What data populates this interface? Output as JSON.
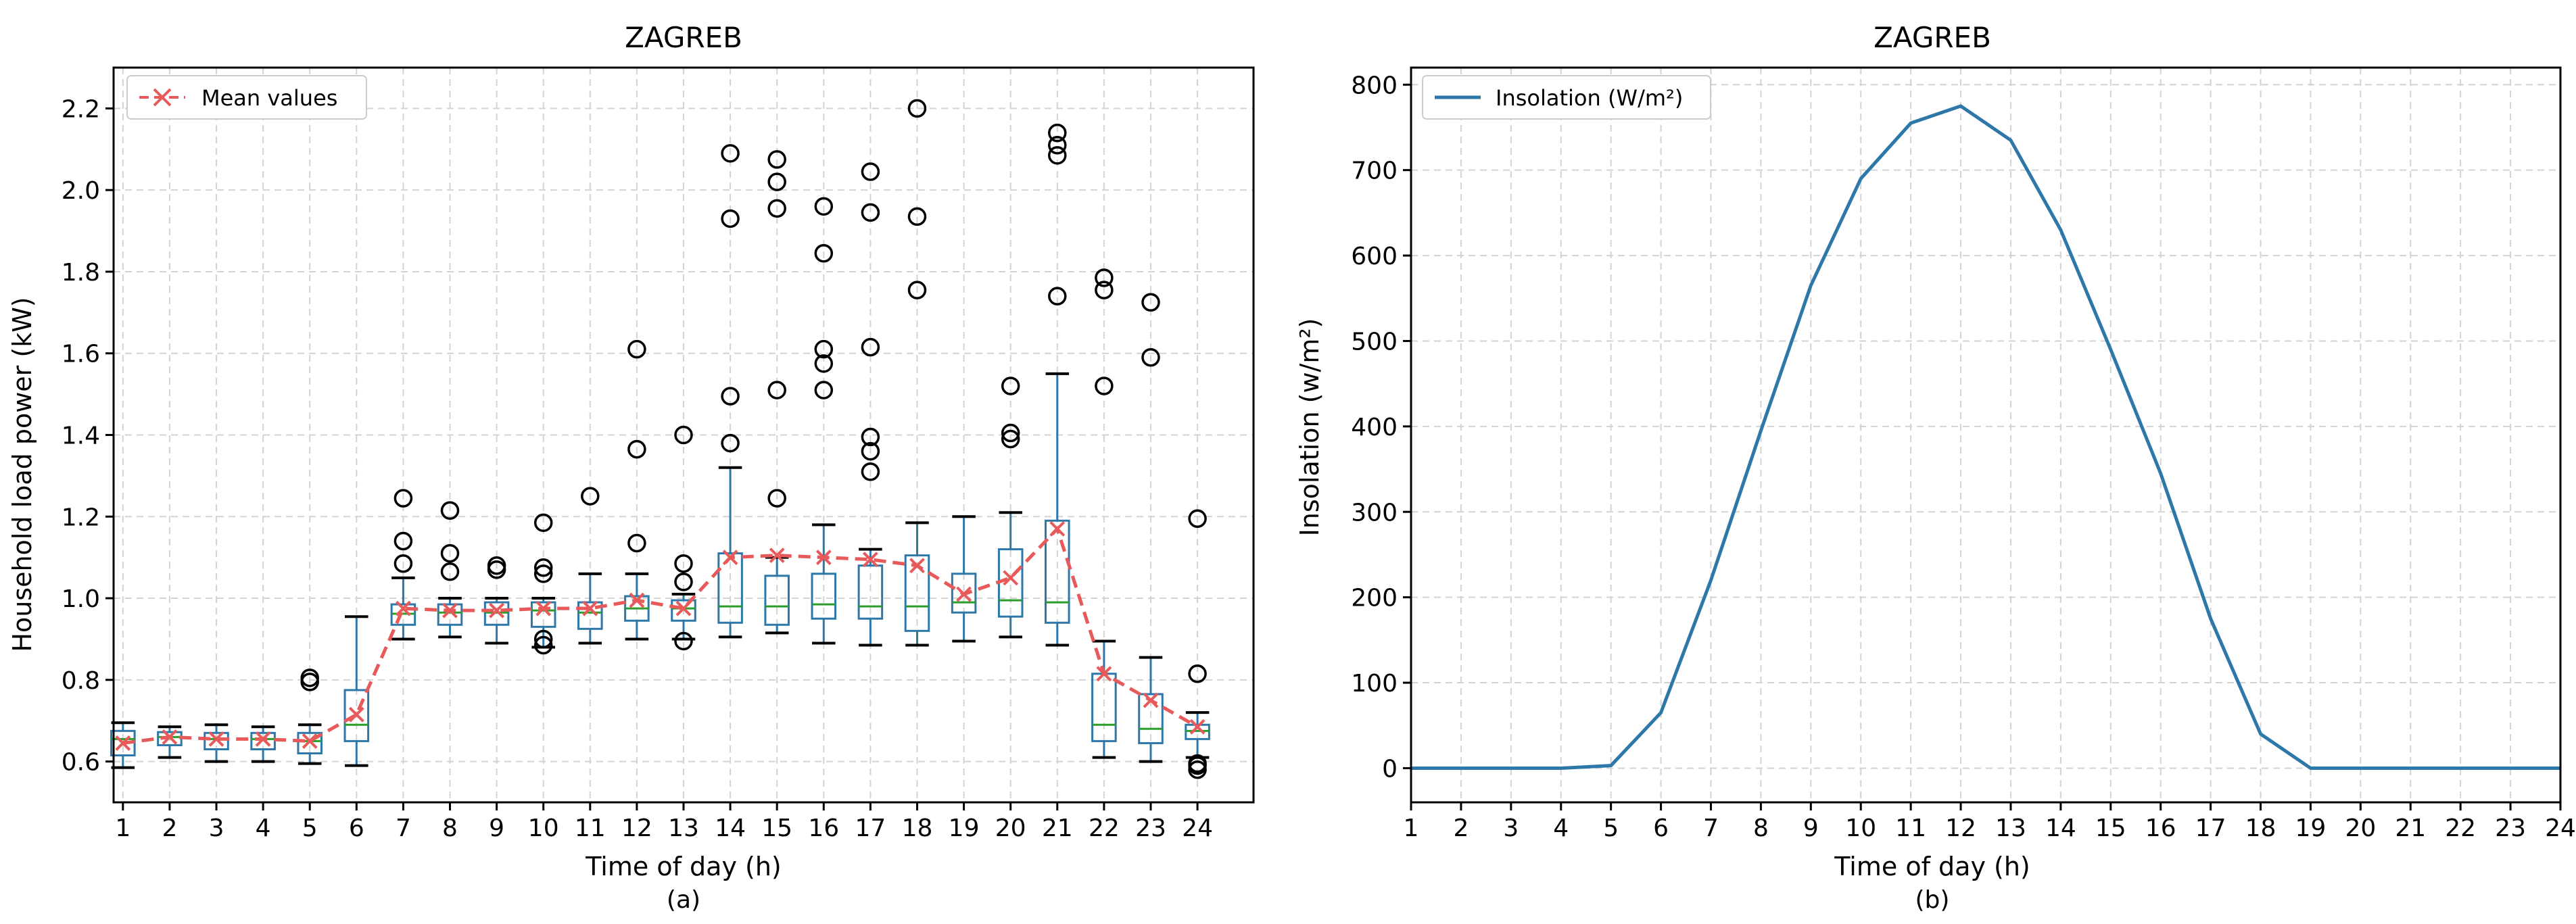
{
  "chart_data": [
    {
      "type": "box",
      "title": "ZAGREB",
      "panel_label": "(a)",
      "xlabel": "Time of day (h)",
      "ylabel": "Household load power (kW)",
      "x_ticks": [
        "1",
        "2",
        "3",
        "4",
        "5",
        "6",
        "7",
        "8",
        "9",
        "10",
        "11",
        "12",
        "13",
        "14",
        "15",
        "16",
        "17",
        "18",
        "19",
        "20",
        "21",
        "22",
        "23",
        "24"
      ],
      "y_ticks": [
        "0.6",
        "0.8",
        "1.0",
        "1.2",
        "1.4",
        "1.6",
        "1.8",
        "2.0",
        "2.2"
      ],
      "ylim": [
        0.5,
        2.3
      ],
      "grid": true,
      "legend": {
        "position": "top-left",
        "entries": [
          "Mean values"
        ]
      },
      "colors": {
        "box": "#2e78a9",
        "median": "#2a9d2a",
        "mean": "#e8595a",
        "flier": "#000000"
      },
      "boxes": [
        {
          "hour": 1,
          "wlo": 0.585,
          "q1": 0.615,
          "med": 0.655,
          "q3": 0.675,
          "whi": 0.695,
          "fliers": []
        },
        {
          "hour": 2,
          "wlo": 0.61,
          "q1": 0.64,
          "med": 0.66,
          "q3": 0.672,
          "whi": 0.685,
          "fliers": []
        },
        {
          "hour": 3,
          "wlo": 0.6,
          "q1": 0.63,
          "med": 0.655,
          "q3": 0.67,
          "whi": 0.69,
          "fliers": []
        },
        {
          "hour": 4,
          "wlo": 0.6,
          "q1": 0.63,
          "med": 0.655,
          "q3": 0.67,
          "whi": 0.685,
          "fliers": []
        },
        {
          "hour": 5,
          "wlo": 0.595,
          "q1": 0.62,
          "med": 0.65,
          "q3": 0.67,
          "whi": 0.69,
          "fliers": [
            0.795,
            0.805
          ]
        },
        {
          "hour": 6,
          "wlo": 0.59,
          "q1": 0.65,
          "med": 0.69,
          "q3": 0.775,
          "whi": 0.955,
          "fliers": []
        },
        {
          "hour": 7,
          "wlo": 0.9,
          "q1": 0.935,
          "med": 0.962,
          "q3": 0.985,
          "whi": 1.05,
          "fliers": [
            1.085,
            1.14,
            1.245
          ]
        },
        {
          "hour": 8,
          "wlo": 0.905,
          "q1": 0.935,
          "med": 0.965,
          "q3": 0.985,
          "whi": 1.0,
          "fliers": [
            1.065,
            1.11,
            1.215
          ]
        },
        {
          "hour": 9,
          "wlo": 0.89,
          "q1": 0.935,
          "med": 0.965,
          "q3": 0.99,
          "whi": 1.0,
          "fliers": [
            1.07,
            1.08
          ]
        },
        {
          "hour": 10,
          "wlo": 0.88,
          "q1": 0.93,
          "med": 0.97,
          "q3": 0.99,
          "whi": 1.0,
          "fliers": [
            0.885,
            0.9,
            1.06,
            1.075,
            1.185
          ]
        },
        {
          "hour": 11,
          "wlo": 0.89,
          "q1": 0.925,
          "med": 0.965,
          "q3": 0.99,
          "whi": 1.06,
          "fliers": [
            1.25
          ]
        },
        {
          "hour": 12,
          "wlo": 0.9,
          "q1": 0.945,
          "med": 0.975,
          "q3": 1.005,
          "whi": 1.06,
          "fliers": [
            1.135,
            1.365,
            1.61
          ]
        },
        {
          "hour": 13,
          "wlo": 0.9,
          "q1": 0.945,
          "med": 0.975,
          "q3": 0.995,
          "whi": 1.01,
          "fliers": [
            0.895,
            1.04,
            1.085,
            1.4
          ]
        },
        {
          "hour": 14,
          "wlo": 0.905,
          "q1": 0.94,
          "med": 0.98,
          "q3": 1.11,
          "whi": 1.32,
          "fliers": [
            1.38,
            1.495,
            1.93,
            2.09
          ]
        },
        {
          "hour": 15,
          "wlo": 0.915,
          "q1": 0.935,
          "med": 0.98,
          "q3": 1.055,
          "whi": 1.1,
          "fliers": [
            1.245,
            1.51,
            1.955,
            2.02,
            2.075
          ]
        },
        {
          "hour": 16,
          "wlo": 0.89,
          "q1": 0.95,
          "med": 0.985,
          "q3": 1.06,
          "whi": 1.18,
          "fliers": [
            1.51,
            1.575,
            1.61,
            1.845,
            1.96
          ]
        },
        {
          "hour": 17,
          "wlo": 0.885,
          "q1": 0.95,
          "med": 0.98,
          "q3": 1.08,
          "whi": 1.12,
          "fliers": [
            1.31,
            1.36,
            1.395,
            1.615,
            1.945,
            2.045
          ]
        },
        {
          "hour": 18,
          "wlo": 0.885,
          "q1": 0.92,
          "med": 0.98,
          "q3": 1.105,
          "whi": 1.185,
          "fliers": [
            1.755,
            1.935,
            2.2
          ]
        },
        {
          "hour": 19,
          "wlo": 0.895,
          "q1": 0.965,
          "med": 0.99,
          "q3": 1.06,
          "whi": 1.2,
          "fliers": []
        },
        {
          "hour": 20,
          "wlo": 0.905,
          "q1": 0.955,
          "med": 0.995,
          "q3": 1.12,
          "whi": 1.21,
          "fliers": [
            1.39,
            1.405,
            1.52
          ]
        },
        {
          "hour": 21,
          "wlo": 0.885,
          "q1": 0.94,
          "med": 0.99,
          "q3": 1.19,
          "whi": 1.55,
          "fliers": [
            1.74,
            2.085,
            2.11,
            2.14
          ]
        },
        {
          "hour": 22,
          "wlo": 0.61,
          "q1": 0.65,
          "med": 0.69,
          "q3": 0.815,
          "whi": 0.895,
          "fliers": [
            1.52,
            1.755,
            1.785
          ]
        },
        {
          "hour": 23,
          "wlo": 0.6,
          "q1": 0.645,
          "med": 0.68,
          "q3": 0.765,
          "whi": 0.855,
          "fliers": [
            1.59,
            1.725
          ]
        },
        {
          "hour": 24,
          "wlo": 0.61,
          "q1": 0.655,
          "med": 0.675,
          "q3": 0.69,
          "whi": 0.72,
          "fliers": [
            0.58,
            0.59,
            0.595,
            0.815,
            1.195
          ]
        }
      ],
      "mean_values": [
        0.645,
        0.66,
        0.655,
        0.655,
        0.65,
        0.715,
        0.975,
        0.97,
        0.97,
        0.975,
        0.975,
        0.995,
        0.975,
        1.1,
        1.105,
        1.1,
        1.095,
        1.08,
        1.01,
        1.05,
        1.17,
        0.815,
        0.75,
        0.685
      ]
    },
    {
      "type": "line",
      "title": "ZAGREB",
      "panel_label": "(b)",
      "xlabel": "Time of day (h)",
      "ylabel": "Insolation (w/m²)",
      "x_ticks": [
        "1",
        "2",
        "3",
        "4",
        "5",
        "6",
        "7",
        "8",
        "9",
        "10",
        "11",
        "12",
        "13",
        "14",
        "15",
        "16",
        "17",
        "18",
        "19",
        "20",
        "21",
        "22",
        "23",
        "24"
      ],
      "y_ticks": [
        "0",
        "100",
        "200",
        "300",
        "400",
        "500",
        "600",
        "700",
        "800"
      ],
      "ylim": [
        -40,
        820
      ],
      "grid": true,
      "legend": {
        "position": "top-left",
        "entries": [
          "Insolation (W/m²)"
        ]
      },
      "colors": {
        "line": "#2e78a9"
      },
      "x": [
        1,
        2,
        3,
        4,
        5,
        6,
        7,
        8,
        9,
        10,
        11,
        12,
        13,
        14,
        15,
        16,
        17,
        18,
        19,
        20,
        21,
        22,
        23,
        24
      ],
      "values": [
        0,
        0,
        0,
        0,
        3,
        65,
        220,
        395,
        565,
        690,
        755,
        775,
        735,
        630,
        490,
        345,
        175,
        40,
        0,
        0,
        0,
        0,
        0,
        0
      ]
    }
  ]
}
